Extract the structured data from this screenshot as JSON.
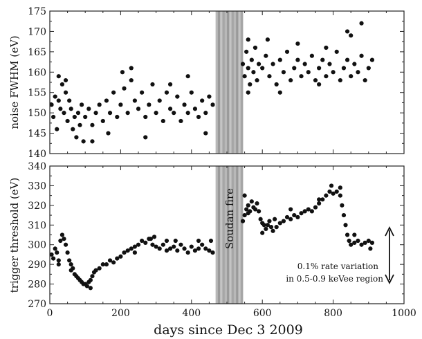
{
  "chart_data": [
    {
      "type": "scatter",
      "panel": "top",
      "ylabel": "noise FWHM (eV)",
      "ylim": [
        140,
        175
      ],
      "yticks": [
        "140",
        "145",
        "150",
        "155",
        "160",
        "165",
        "170",
        "175"
      ],
      "xlim": [
        0,
        1000
      ],
      "grid": false,
      "series": [
        {
          "points": [
            [
              5,
              152
            ],
            [
              10,
              149
            ],
            [
              15,
              154
            ],
            [
              20,
              146
            ],
            [
              25,
              153
            ],
            [
              30,
              151
            ],
            [
              35,
              157
            ],
            [
              40,
              150
            ],
            [
              45,
              155
            ],
            [
              50,
              148
            ],
            [
              55,
              153
            ],
            [
              60,
              151
            ],
            [
              65,
              146
            ],
            [
              70,
              149
            ],
            [
              75,
              144
            ],
            [
              80,
              150
            ],
            [
              85,
              147
            ],
            [
              90,
              152
            ],
            [
              95,
              143
            ],
            [
              100,
              149
            ],
            [
              110,
              151
            ],
            [
              120,
              147
            ],
            [
              130,
              150
            ],
            [
              140,
              152
            ],
            [
              150,
              148
            ],
            [
              160,
              153
            ],
            [
              170,
              150
            ],
            [
              180,
              155
            ],
            [
              190,
              149
            ],
            [
              200,
              152
            ],
            [
              210,
              156
            ],
            [
              220,
              150
            ],
            [
              230,
              158
            ],
            [
              240,
              153
            ],
            [
              250,
              151
            ],
            [
              260,
              155
            ],
            [
              270,
              149
            ],
            [
              280,
              152
            ],
            [
              290,
              157
            ],
            [
              300,
              150
            ],
            [
              310,
              153
            ],
            [
              320,
              148
            ],
            [
              330,
              155
            ],
            [
              340,
              151
            ],
            [
              350,
              150
            ],
            [
              360,
              154
            ],
            [
              370,
              148
            ],
            [
              380,
              152
            ],
            [
              390,
              150
            ],
            [
              400,
              155
            ],
            [
              410,
              151
            ],
            [
              420,
              149
            ],
            [
              430,
              153
            ],
            [
              440,
              150
            ],
            [
              450,
              154
            ],
            [
              460,
              152
            ],
            [
              25,
              159
            ],
            [
              45,
              158
            ],
            [
              205,
              160
            ],
            [
              230,
              161
            ],
            [
              270,
              144
            ],
            [
              390,
              159
            ],
            [
              440,
              145
            ],
            [
              120,
              143
            ],
            [
              340,
              157
            ],
            [
              165,
              145
            ]
          ]
        },
        {
          "points": [
            [
              545,
              162
            ],
            [
              550,
              159
            ],
            [
              555,
              165
            ],
            [
              560,
              161
            ],
            [
              565,
              157
            ],
            [
              570,
              163
            ],
            [
              575,
              160
            ],
            [
              580,
              166
            ],
            [
              585,
              158
            ],
            [
              590,
              162
            ],
            [
              600,
              161
            ],
            [
              610,
              164
            ],
            [
              620,
              159
            ],
            [
              630,
              162
            ],
            [
              640,
              157
            ],
            [
              650,
              163
            ],
            [
              660,
              160
            ],
            [
              670,
              165
            ],
            [
              680,
              158
            ],
            [
              690,
              161
            ],
            [
              700,
              163
            ],
            [
              710,
              159
            ],
            [
              720,
              162
            ],
            [
              730,
              160
            ],
            [
              740,
              164
            ],
            [
              750,
              158
            ],
            [
              760,
              161
            ],
            [
              770,
              163
            ],
            [
              780,
              159
            ],
            [
              790,
              162
            ],
            [
              800,
              160
            ],
            [
              810,
              165
            ],
            [
              820,
              158
            ],
            [
              830,
              161
            ],
            [
              840,
              163
            ],
            [
              850,
              159
            ],
            [
              860,
              162
            ],
            [
              870,
              160
            ],
            [
              880,
              164
            ],
            [
              890,
              158
            ],
            [
              900,
              161
            ],
            [
              910,
              163
            ],
            [
              560,
              168
            ],
            [
              615,
              168
            ],
            [
              700,
              167
            ],
            [
              780,
              166
            ],
            [
              840,
              170
            ],
            [
              880,
              172
            ],
            [
              850,
              169
            ],
            [
              760,
              157
            ],
            [
              650,
              155
            ],
            [
              560,
              155
            ]
          ]
        }
      ],
      "band": {
        "label": "",
        "xrange": [
          468,
          545
        ]
      }
    },
    {
      "type": "scatter",
      "panel": "bottom",
      "xlabel": "days since Dec 3 2009",
      "ylabel": "trigger threshold (eV)",
      "xlim": [
        0,
        1000
      ],
      "ylim": [
        270,
        340
      ],
      "xticks": [
        "0",
        "200",
        "400",
        "600",
        "800",
        "1000"
      ],
      "yticks": [
        "270",
        "280",
        "290",
        "300",
        "310",
        "320",
        "330",
        "340"
      ],
      "grid": false,
      "series": [
        {
          "points": [
            [
              5,
              295
            ],
            [
              10,
              293
            ],
            [
              15,
              298
            ],
            [
              20,
              296
            ],
            [
              25,
              292
            ],
            [
              30,
              302
            ],
            [
              35,
              305
            ],
            [
              40,
              303
            ],
            [
              45,
              300
            ],
            [
              50,
              296
            ],
            [
              55,
              292
            ],
            [
              60,
              290
            ],
            [
              65,
              288
            ],
            [
              70,
              285
            ],
            [
              75,
              284
            ],
            [
              80,
              283
            ],
            [
              85,
              282
            ],
            [
              90,
              281
            ],
            [
              95,
              280
            ],
            [
              100,
              280
            ],
            [
              105,
              279
            ],
            [
              110,
              281
            ],
            [
              115,
              282
            ],
            [
              120,
              284
            ],
            [
              125,
              286
            ],
            [
              130,
              287
            ],
            [
              140,
              288
            ],
            [
              150,
              290
            ],
            [
              160,
              290
            ],
            [
              170,
              292
            ],
            [
              180,
              291
            ],
            [
              190,
              293
            ],
            [
              200,
              294
            ],
            [
              210,
              296
            ],
            [
              220,
              297
            ],
            [
              230,
              298
            ],
            [
              240,
              299
            ],
            [
              250,
              300
            ],
            [
              260,
              302
            ],
            [
              270,
              301
            ],
            [
              280,
              303
            ],
            [
              290,
              300
            ],
            [
              300,
              299
            ],
            [
              310,
              298
            ],
            [
              320,
              300
            ],
            [
              330,
              297
            ],
            [
              340,
              298
            ],
            [
              350,
              299
            ],
            [
              360,
              297
            ],
            [
              370,
              300
            ],
            [
              380,
              298
            ],
            [
              390,
              296
            ],
            [
              400,
              299
            ],
            [
              410,
              297
            ],
            [
              420,
              298
            ],
            [
              430,
              300
            ],
            [
              440,
              298
            ],
            [
              450,
              297
            ],
            [
              460,
              296
            ],
            [
              285,
              303
            ],
            [
              295,
              304
            ],
            [
              330,
              302
            ],
            [
              25,
              290
            ],
            [
              60,
              287
            ],
            [
              115,
              278
            ],
            [
              240,
              296
            ],
            [
              355,
              302
            ],
            [
              420,
              302
            ],
            [
              455,
              302
            ]
          ]
        },
        {
          "points": [
            [
              545,
              312
            ],
            [
              550,
              315
            ],
            [
              555,
              318
            ],
            [
              560,
              320
            ],
            [
              565,
              317
            ],
            [
              570,
              322
            ],
            [
              575,
              319
            ],
            [
              580,
              318
            ],
            [
              585,
              321
            ],
            [
              590,
              317
            ],
            [
              595,
              313
            ],
            [
              600,
              311
            ],
            [
              605,
              310
            ],
            [
              610,
              308
            ],
            [
              615,
              310
            ],
            [
              620,
              312
            ],
            [
              625,
              309
            ],
            [
              630,
              307
            ],
            [
              640,
              309
            ],
            [
              650,
              311
            ],
            [
              660,
              312
            ],
            [
              670,
              314
            ],
            [
              680,
              313
            ],
            [
              690,
              315
            ],
            [
              700,
              314
            ],
            [
              710,
              316
            ],
            [
              720,
              317
            ],
            [
              730,
              318
            ],
            [
              740,
              317
            ],
            [
              750,
              319
            ],
            [
              760,
              321
            ],
            [
              770,
              323
            ],
            [
              780,
              325
            ],
            [
              790,
              327
            ],
            [
              800,
              326
            ],
            [
              810,
              327
            ],
            [
              820,
              325
            ],
            [
              825,
              320
            ],
            [
              830,
              315
            ],
            [
              835,
              310
            ],
            [
              840,
              305
            ],
            [
              845,
              302
            ],
            [
              850,
              300
            ],
            [
              860,
              301
            ],
            [
              870,
              302
            ],
            [
              880,
              300
            ],
            [
              890,
              301
            ],
            [
              900,
              302
            ],
            [
              910,
              301
            ],
            [
              550,
              325
            ],
            [
              560,
              316
            ],
            [
              600,
              306
            ],
            [
              635,
              313
            ],
            [
              680,
              318
            ],
            [
              760,
              323
            ],
            [
              795,
              330
            ],
            [
              820,
              329
            ],
            [
              860,
              305
            ],
            [
              905,
              298
            ]
          ]
        }
      ],
      "band": {
        "label": "Soudan fire",
        "xrange": [
          468,
          545
        ]
      },
      "annotation": {
        "lines": [
          "0.1% rate variation",
          "in 0.5-0.9 keVee region"
        ]
      }
    }
  ]
}
